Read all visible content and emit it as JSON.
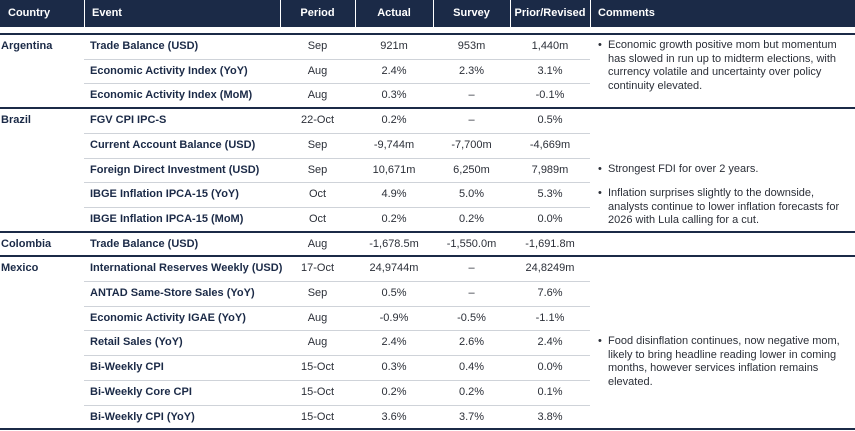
{
  "header": {
    "columns": [
      "Country",
      "Event",
      "Period",
      "Actual",
      "Survey",
      "Prior/Revised",
      "Comments"
    ]
  },
  "groups": [
    {
      "country": "Argentina",
      "rows": [
        {
          "event": "Trade Balance (USD)",
          "period": "Sep",
          "actual": "921m",
          "survey": "953m",
          "prior": "1,440m",
          "comment": "Economic growth positive mom but momentum has slowed in run up to midterm elections, with currency volatile and uncertainty over policy continuity elevated."
        },
        {
          "event": "Economic Activity Index (YoY)",
          "period": "Aug",
          "actual": "2.4%",
          "survey": "2.3%",
          "prior": "3.1%"
        },
        {
          "event": "Economic Activity Index (MoM)",
          "period": "Aug",
          "actual": "0.3%",
          "survey": "–",
          "prior": "-0.1%"
        }
      ]
    },
    {
      "country": "Brazil",
      "rows": [
        {
          "event": "FGV CPI IPC-S",
          "period": "22-Oct",
          "actual": "0.2%",
          "survey": "–",
          "prior": "0.5%"
        },
        {
          "event": "Current Account Balance (USD)",
          "period": "Sep",
          "actual": "-9,744m",
          "survey": "-7,700m",
          "prior": "-4,669m"
        },
        {
          "event": "Foreign Direct Investment (USD)",
          "period": "Sep",
          "actual": "10,671m",
          "survey": "6,250m",
          "prior": "7,989m",
          "comment": "Strongest FDI for over 2 years."
        },
        {
          "event": "IBGE Inflation IPCA-15 (YoY)",
          "period": "Oct",
          "actual": "4.9%",
          "survey": "5.0%",
          "prior": "5.3%",
          "comment": "Inflation surprises slightly to the downside, analysts continue to lower inflation forecasts for 2026 with Lula calling for a cut."
        },
        {
          "event": "IBGE Inflation IPCA-15 (MoM)",
          "period": "Oct",
          "actual": "0.2%",
          "survey": "0.2%",
          "prior": "0.0%"
        }
      ]
    },
    {
      "country": "Colombia",
      "rows": [
        {
          "event": "Trade Balance (USD)",
          "period": "Aug",
          "actual": "-1,678.5m",
          "survey": "-1,550.0m",
          "prior": "-1,691.8m"
        }
      ]
    },
    {
      "country": "Mexico",
      "rows": [
        {
          "event": "International Reserves Weekly (USD)",
          "period": "17-Oct",
          "actual": "24,9744m",
          "survey": "–",
          "prior": "24,8249m"
        },
        {
          "event": "ANTAD Same-Store Sales (YoY)",
          "period": "Sep",
          "actual": "0.5%",
          "survey": "–",
          "prior": "7.6%"
        },
        {
          "event": "Economic Activity IGAE (YoY)",
          "period": "Aug",
          "actual": "-0.9%",
          "survey": "-0.5%",
          "prior": "-1.1%"
        },
        {
          "event": "Retail Sales (YoY)",
          "period": "Aug",
          "actual": "2.4%",
          "survey": "2.6%",
          "prior": "2.4%",
          "comment": "Food disinflation continues, now negative mom, likely to bring headline reading lower in coming months, however services inflation remains elevated."
        },
        {
          "event": "Bi-Weekly CPI",
          "period": "15-Oct",
          "actual": "0.3%",
          "survey": "0.4%",
          "prior": "0.0%"
        },
        {
          "event": "Bi-Weekly Core CPI",
          "period": "15-Oct",
          "actual": "0.2%",
          "survey": "0.2%",
          "prior": "0.1%"
        },
        {
          "event": "Bi-Weekly CPI (YoY)",
          "period": "15-Oct",
          "actual": "3.6%",
          "survey": "3.7%",
          "prior": "3.8%"
        }
      ]
    }
  ]
}
